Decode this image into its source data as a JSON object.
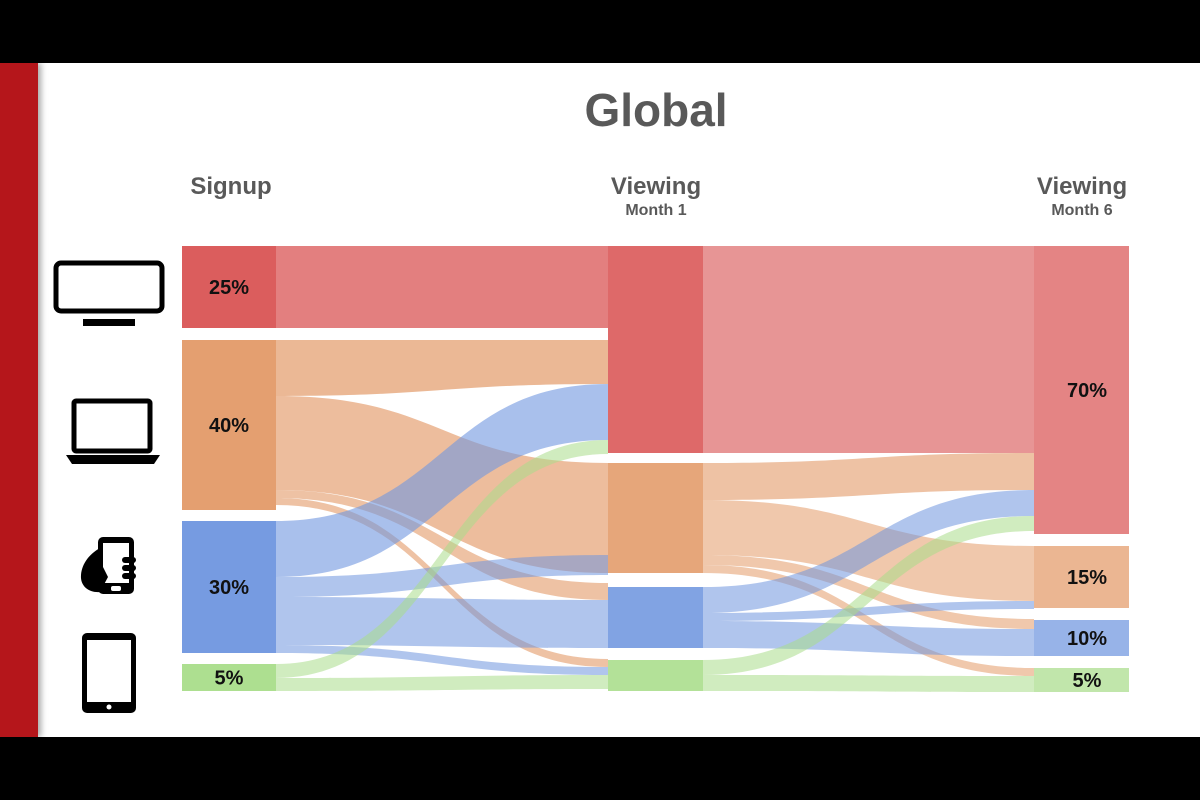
{
  "title": "Global",
  "columns": [
    {
      "label": "Signup",
      "sublabel": ""
    },
    {
      "label": "Viewing",
      "sublabel": "Month 1"
    },
    {
      "label": "Viewing",
      "sublabel": "Month 6"
    }
  ],
  "icons": [
    "tv-icon",
    "laptop-icon",
    "smartphone-icon",
    "tablet-icon"
  ],
  "colors": {
    "tv": "#d95454",
    "laptop": "#e39a68",
    "phone": "#6f96df",
    "tablet": "#a9dd8a",
    "accent_bar": "#b5161b"
  },
  "chart_data": {
    "type": "sankey",
    "title": "Global",
    "stages": [
      "Signup",
      "Viewing Month 1",
      "Viewing Month 6"
    ],
    "categories": [
      "TV",
      "Laptop",
      "Phone",
      "Tablet"
    ],
    "signup_labels": [
      "25%",
      "40%",
      "30%",
      "5%"
    ],
    "month6_labels": [
      "70%",
      "15%",
      "10%",
      "5%"
    ],
    "signup": [
      25,
      40,
      30,
      5
    ],
    "month6": [
      70,
      15,
      10,
      5
    ]
  }
}
